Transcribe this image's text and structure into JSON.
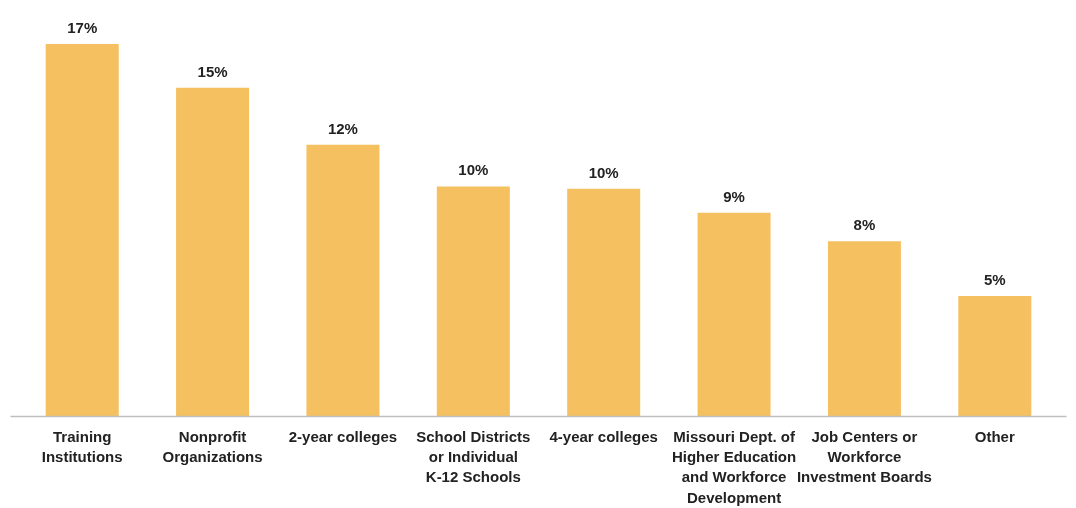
{
  "chart_data": {
    "type": "bar",
    "categories": [
      "Training Institutions",
      "Nonprofit Organizations",
      "2-year colleges",
      "School Districts or Individual K-12 Schools",
      "4-year colleges",
      "Missouri Dept. of Higher Education and Workforce Development",
      "Job Centers or Workforce Investment Boards",
      "Other"
    ],
    "values": [
      17,
      15,
      12.4,
      10.5,
      10.4,
      9.3,
      8,
      5.5
    ],
    "value_labels": [
      "17%",
      "15%",
      "12%",
      "10%",
      "10%",
      "9%",
      "8%",
      "5%"
    ],
    "color": "#f4c060",
    "grid": false
  }
}
